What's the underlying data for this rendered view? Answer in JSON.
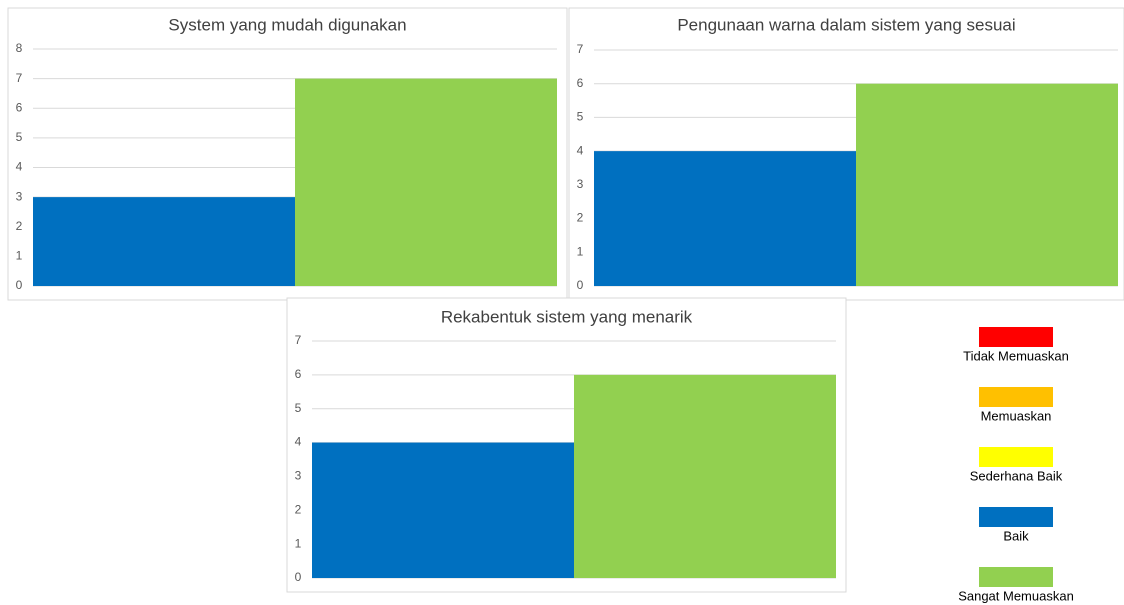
{
  "chart_data": [
    {
      "type": "bar",
      "title": "System yang mudah digunakan",
      "categories": [
        null,
        null
      ],
      "values": [
        3,
        7
      ],
      "colors": [
        "#0070c0",
        "#92d050"
      ],
      "ylim": [
        0,
        8
      ],
      "yticks": [
        0,
        1,
        2,
        3,
        4,
        5,
        6,
        7,
        8
      ],
      "grid": true
    },
    {
      "type": "bar",
      "title": "Pengunaan warna dalam sistem yang sesuai",
      "categories": [
        null,
        null
      ],
      "values": [
        4,
        6
      ],
      "colors": [
        "#0070c0",
        "#92d050"
      ],
      "ylim": [
        0,
        7
      ],
      "yticks": [
        0,
        1,
        2,
        3,
        4,
        5,
        6,
        7
      ],
      "grid": true
    },
    {
      "type": "bar",
      "title": "Rekabentuk sistem yang menarik",
      "categories": [
        null,
        null
      ],
      "values": [
        4,
        6
      ],
      "colors": [
        "#0070c0",
        "#92d050"
      ],
      "ylim": [
        0,
        7
      ],
      "yticks": [
        0,
        1,
        2,
        3,
        4,
        5,
        6,
        7
      ],
      "grid": true
    }
  ],
  "legend": {
    "items": [
      {
        "name": "Tidak Memuaskan",
        "color": "#ff0000"
      },
      {
        "name": "Memuaskan",
        "color": "#ffc000"
      },
      {
        "name": "Sederhana Baik",
        "color": "#ffff00"
      },
      {
        "name": "Baik",
        "color": "#0070c0"
      },
      {
        "name": "Sangat Memuaskan",
        "color": "#92d050"
      }
    ]
  }
}
